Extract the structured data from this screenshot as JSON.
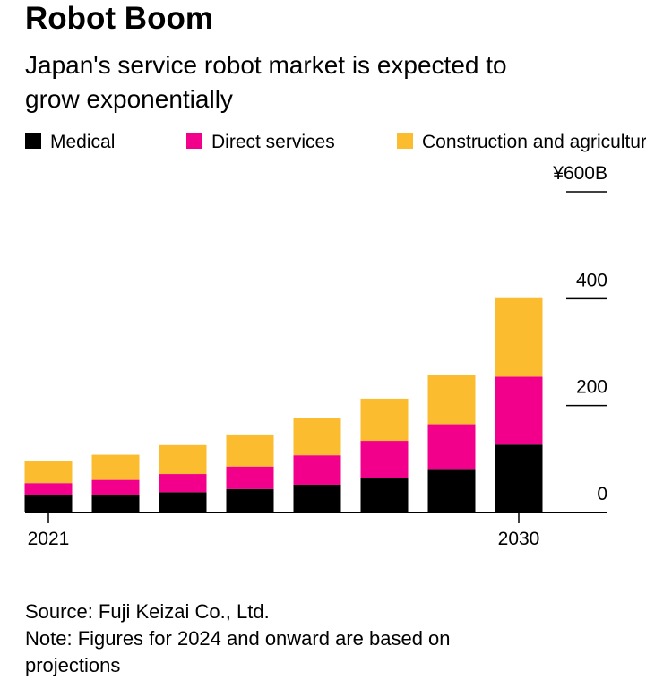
{
  "chart_data": {
    "type": "bar",
    "stacked": true,
    "title": "Robot Boom",
    "subtitle": [
      "Japan's service robot market is expected to",
      "grow exponentially"
    ],
    "categories": [
      "2021",
      null,
      null,
      null,
      null,
      null,
      null,
      "2030"
    ],
    "series": [
      {
        "name": "Medical",
        "color": "#000000",
        "values": [
          32,
          33,
          38,
          44,
          52,
          64,
          80,
          127
        ]
      },
      {
        "name": "Direct services",
        "color": "#f2008c",
        "values": [
          23,
          28,
          34,
          42,
          55,
          70,
          85,
          127
        ]
      },
      {
        "name": "Construction and agriculture",
        "color": "#fbbd2f",
        "values": [
          42,
          47,
          54,
          60,
          70,
          79,
          92,
          147
        ]
      }
    ],
    "ylim": [
      0,
      600
    ],
    "yticks": [
      0,
      200,
      400,
      {
        "value": 600,
        "label": "¥600B"
      }
    ],
    "notes": [
      "Source: Fuji Keizai Co., Ltd.",
      "Note: Figures for 2024 and onward are based on",
      "projections"
    ]
  }
}
